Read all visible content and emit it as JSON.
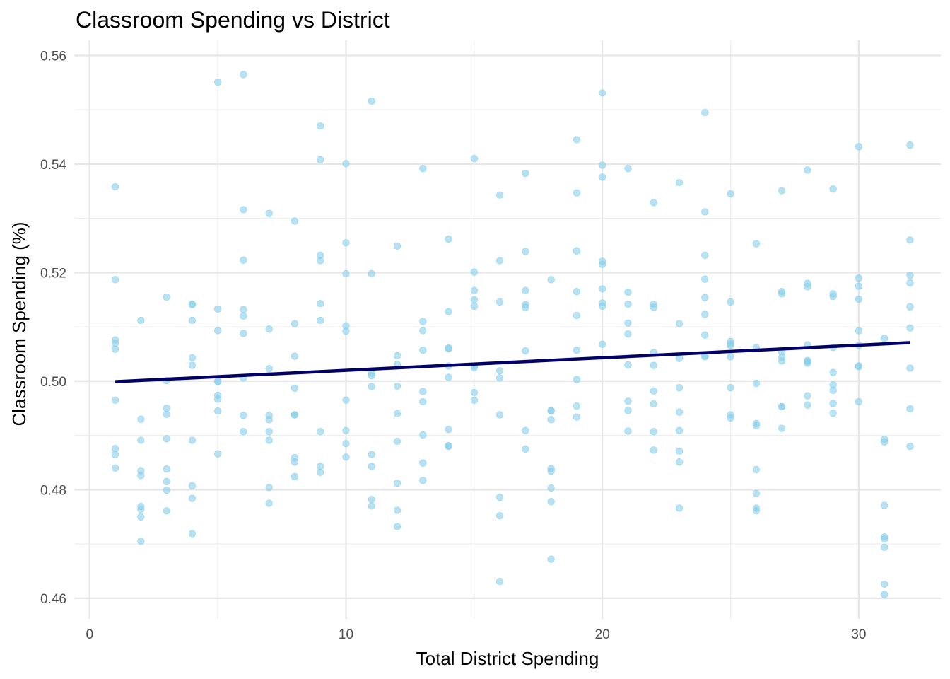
{
  "chart_data": {
    "type": "scatter",
    "title": "Classroom Spending vs  District",
    "xlabel": "Total District Spending",
    "ylabel": "Classroom Spending (%)",
    "xlim": [
      -0.6,
      33.2
    ],
    "ylim": [
      0.4562,
      0.5628
    ],
    "x_ticks": [
      0,
      10,
      20,
      30
    ],
    "x_tick_labels": [
      "0",
      "10",
      "20",
      "30"
    ],
    "y_ticks": [
      0.46,
      0.48,
      0.5,
      0.52,
      0.54,
      0.56
    ],
    "y_tick_labels": [
      "0.46",
      "0.48",
      "0.50",
      "0.52",
      "0.54",
      "0.56"
    ],
    "grid": true,
    "point_color": "#87CEEB",
    "line_color": "#000066",
    "trend_line": {
      "x": [
        1,
        32
      ],
      "y": [
        0.4999,
        0.5071
      ]
    },
    "points": [
      [
        1,
        0.5358
      ],
      [
        1,
        0.5187
      ],
      [
        1,
        0.5076
      ],
      [
        1,
        0.507
      ],
      [
        1,
        0.5059
      ],
      [
        1,
        0.4965
      ],
      [
        1,
        0.4876
      ],
      [
        1,
        0.4865
      ],
      [
        1,
        0.484
      ],
      [
        2,
        0.5112
      ],
      [
        2,
        0.493
      ],
      [
        2,
        0.4891
      ],
      [
        2,
        0.4835
      ],
      [
        2,
        0.4826
      ],
      [
        2,
        0.4769
      ],
      [
        2,
        0.4764
      ],
      [
        2,
        0.475
      ],
      [
        2,
        0.4705
      ],
      [
        3,
        0.5155
      ],
      [
        3,
        0.5001
      ],
      [
        3,
        0.495
      ],
      [
        3,
        0.4939
      ],
      [
        3,
        0.4894
      ],
      [
        3,
        0.4838
      ],
      [
        3,
        0.4815
      ],
      [
        3,
        0.4799
      ],
      [
        3,
        0.4761
      ],
      [
        4,
        0.5142
      ],
      [
        4,
        0.5141
      ],
      [
        4,
        0.5112
      ],
      [
        4,
        0.5043
      ],
      [
        4,
        0.5029
      ],
      [
        4,
        0.4891
      ],
      [
        4,
        0.4807
      ],
      [
        4,
        0.4784
      ],
      [
        4,
        0.4719
      ],
      [
        5,
        0.5551
      ],
      [
        5,
        0.5133
      ],
      [
        5,
        0.5093
      ],
      [
        5,
        0.5
      ],
      [
        5,
        0.4999
      ],
      [
        5,
        0.4974
      ],
      [
        5,
        0.4967
      ],
      [
        5,
        0.4945
      ],
      [
        5,
        0.4866
      ],
      [
        6,
        0.5565
      ],
      [
        6,
        0.5316
      ],
      [
        6,
        0.5223
      ],
      [
        6,
        0.5132
      ],
      [
        6,
        0.512
      ],
      [
        6,
        0.5088
      ],
      [
        6,
        0.5006
      ],
      [
        6,
        0.4937
      ],
      [
        6,
        0.4907
      ],
      [
        7,
        0.5309
      ],
      [
        7,
        0.5096
      ],
      [
        7,
        0.5023
      ],
      [
        7,
        0.4937
      ],
      [
        7,
        0.4929
      ],
      [
        7,
        0.4907
      ],
      [
        7,
        0.4891
      ],
      [
        7,
        0.4804
      ],
      [
        7,
        0.4775
      ],
      [
        8,
        0.5295
      ],
      [
        8,
        0.5106
      ],
      [
        8,
        0.5046
      ],
      [
        8,
        0.4987
      ],
      [
        8,
        0.4938
      ],
      [
        8,
        0.4938
      ],
      [
        8,
        0.4859
      ],
      [
        8,
        0.4851
      ],
      [
        8,
        0.4824
      ],
      [
        9,
        0.547
      ],
      [
        9,
        0.5408
      ],
      [
        9,
        0.5232
      ],
      [
        9,
        0.5222
      ],
      [
        9,
        0.5143
      ],
      [
        9,
        0.5112
      ],
      [
        9,
        0.4907
      ],
      [
        9,
        0.4843
      ],
      [
        9,
        0.4832
      ],
      [
        10,
        0.5401
      ],
      [
        10,
        0.5255
      ],
      [
        10,
        0.5198
      ],
      [
        10,
        0.5102
      ],
      [
        10,
        0.5092
      ],
      [
        10,
        0.4965
      ],
      [
        10,
        0.4909
      ],
      [
        10,
        0.4885
      ],
      [
        10,
        0.486
      ],
      [
        11,
        0.5516
      ],
      [
        11,
        0.5198
      ],
      [
        11,
        0.5015
      ],
      [
        11,
        0.501
      ],
      [
        11,
        0.499
      ],
      [
        11,
        0.4865
      ],
      [
        11,
        0.4843
      ],
      [
        11,
        0.4782
      ],
      [
        11,
        0.477
      ],
      [
        12,
        0.5249
      ],
      [
        12,
        0.5047
      ],
      [
        12,
        0.5031
      ],
      [
        12,
        0.4991
      ],
      [
        12,
        0.494
      ],
      [
        12,
        0.4889
      ],
      [
        12,
        0.4812
      ],
      [
        12,
        0.4762
      ],
      [
        12,
        0.4732
      ],
      [
        13,
        0.5392
      ],
      [
        13,
        0.511
      ],
      [
        13,
        0.5093
      ],
      [
        13,
        0.5057
      ],
      [
        13,
        0.4981
      ],
      [
        13,
        0.4962
      ],
      [
        13,
        0.4901
      ],
      [
        13,
        0.4849
      ],
      [
        13,
        0.4817
      ],
      [
        14,
        0.5262
      ],
      [
        14,
        0.5128
      ],
      [
        14,
        0.5061
      ],
      [
        14,
        0.506
      ],
      [
        14,
        0.5028
      ],
      [
        14,
        0.5007
      ],
      [
        14,
        0.4911
      ],
      [
        14,
        0.4881
      ],
      [
        14,
        0.488
      ],
      [
        15,
        0.541
      ],
      [
        15,
        0.5201
      ],
      [
        15,
        0.5167
      ],
      [
        15,
        0.515
      ],
      [
        15,
        0.5138
      ],
      [
        15,
        0.5028
      ],
      [
        15,
        0.5025
      ],
      [
        15,
        0.4979
      ],
      [
        15,
        0.4965
      ],
      [
        16,
        0.5343
      ],
      [
        16,
        0.5222
      ],
      [
        16,
        0.5146
      ],
      [
        16,
        0.5019
      ],
      [
        16,
        0.5006
      ],
      [
        16,
        0.4938
      ],
      [
        16,
        0.4786
      ],
      [
        16,
        0.4752
      ],
      [
        16,
        0.4631
      ],
      [
        17,
        0.5383
      ],
      [
        17,
        0.5239
      ],
      [
        17,
        0.5167
      ],
      [
        17,
        0.5141
      ],
      [
        17,
        0.5136
      ],
      [
        17,
        0.5056
      ],
      [
        17,
        0.4909
      ],
      [
        17,
        0.4875
      ],
      [
        18,
        0.5187
      ],
      [
        18,
        0.4946
      ],
      [
        18,
        0.4945
      ],
      [
        18,
        0.4929
      ],
      [
        18,
        0.4839
      ],
      [
        18,
        0.4834
      ],
      [
        18,
        0.4803
      ],
      [
        18,
        0.4778
      ],
      [
        18,
        0.4672
      ],
      [
        19,
        0.5445
      ],
      [
        19,
        0.5347
      ],
      [
        19,
        0.524
      ],
      [
        19,
        0.5165
      ],
      [
        19,
        0.5121
      ],
      [
        19,
        0.5057
      ],
      [
        19,
        0.5003
      ],
      [
        19,
        0.4954
      ],
      [
        19,
        0.4934
      ],
      [
        20,
        0.5531
      ],
      [
        20,
        0.5398
      ],
      [
        20,
        0.5376
      ],
      [
        20,
        0.5221
      ],
      [
        20,
        0.5215
      ],
      [
        20,
        0.517
      ],
      [
        20,
        0.5144
      ],
      [
        20,
        0.5138
      ],
      [
        20,
        0.5068
      ],
      [
        21,
        0.5392
      ],
      [
        21,
        0.5164
      ],
      [
        21,
        0.5142
      ],
      [
        21,
        0.5107
      ],
      [
        21,
        0.5087
      ],
      [
        21,
        0.503
      ],
      [
        21,
        0.4963
      ],
      [
        21,
        0.4946
      ],
      [
        21,
        0.4908
      ],
      [
        22,
        0.5329
      ],
      [
        22,
        0.5142
      ],
      [
        22,
        0.5136
      ],
      [
        22,
        0.5053
      ],
      [
        22,
        0.5029
      ],
      [
        22,
        0.4982
      ],
      [
        22,
        0.4958
      ],
      [
        22,
        0.4907
      ],
      [
        22,
        0.4873
      ],
      [
        23,
        0.5366
      ],
      [
        23,
        0.5106
      ],
      [
        23,
        0.5042
      ],
      [
        23,
        0.4988
      ],
      [
        23,
        0.4943
      ],
      [
        23,
        0.4909
      ],
      [
        23,
        0.4871
      ],
      [
        23,
        0.4851
      ],
      [
        23,
        0.4766
      ],
      [
        24,
        0.5495
      ],
      [
        24,
        0.5312
      ],
      [
        24,
        0.5232
      ],
      [
        24,
        0.5188
      ],
      [
        24,
        0.5154
      ],
      [
        24,
        0.5123
      ],
      [
        24,
        0.5085
      ],
      [
        24,
        0.5047
      ],
      [
        24,
        0.5045
      ],
      [
        25,
        0.5345
      ],
      [
        25,
        0.5146
      ],
      [
        25,
        0.5073
      ],
      [
        25,
        0.5069
      ],
      [
        25,
        0.5066
      ],
      [
        25,
        0.5045
      ],
      [
        25,
        0.4988
      ],
      [
        25,
        0.4938
      ],
      [
        25,
        0.4932
      ],
      [
        26,
        0.5253
      ],
      [
        26,
        0.5062
      ],
      [
        26,
        0.4996
      ],
      [
        26,
        0.4922
      ],
      [
        26,
        0.4918
      ],
      [
        26,
        0.4837
      ],
      [
        26,
        0.4793
      ],
      [
        26,
        0.4766
      ],
      [
        26,
        0.4761
      ],
      [
        27,
        0.5351
      ],
      [
        27,
        0.5165
      ],
      [
        27,
        0.5161
      ],
      [
        27,
        0.5054
      ],
      [
        27,
        0.5044
      ],
      [
        27,
        0.5037
      ],
      [
        27,
        0.4953
      ],
      [
        27,
        0.4953
      ],
      [
        27,
        0.4913
      ],
      [
        28,
        0.5389
      ],
      [
        28,
        0.518
      ],
      [
        28,
        0.5174
      ],
      [
        28,
        0.5067
      ],
      [
        28,
        0.5038
      ],
      [
        28,
        0.5036
      ],
      [
        28,
        0.5033
      ],
      [
        28,
        0.4973
      ],
      [
        28,
        0.4956
      ],
      [
        29,
        0.5354
      ],
      [
        29,
        0.5161
      ],
      [
        29,
        0.5156
      ],
      [
        29,
        0.5062
      ],
      [
        29,
        0.5016
      ],
      [
        29,
        0.4993
      ],
      [
        29,
        0.4983
      ],
      [
        29,
        0.4959
      ],
      [
        29,
        0.4941
      ],
      [
        30,
        0.5432
      ],
      [
        30,
        0.519
      ],
      [
        30,
        0.5175
      ],
      [
        30,
        0.5151
      ],
      [
        30,
        0.5093
      ],
      [
        30,
        0.5066
      ],
      [
        30,
        0.5028
      ],
      [
        30,
        0.5027
      ],
      [
        30,
        0.4962
      ],
      [
        31,
        0.5079
      ],
      [
        31,
        0.4893
      ],
      [
        31,
        0.4888
      ],
      [
        31,
        0.4771
      ],
      [
        31,
        0.4713
      ],
      [
        31,
        0.4709
      ],
      [
        31,
        0.4694
      ],
      [
        31,
        0.4626
      ],
      [
        31,
        0.4607
      ],
      [
        32,
        0.5435
      ],
      [
        32,
        0.526
      ],
      [
        32,
        0.5195
      ],
      [
        32,
        0.5181
      ],
      [
        32,
        0.5137
      ],
      [
        32,
        0.5098
      ],
      [
        32,
        0.5024
      ],
      [
        32,
        0.4949
      ],
      [
        32,
        0.488
      ]
    ]
  }
}
